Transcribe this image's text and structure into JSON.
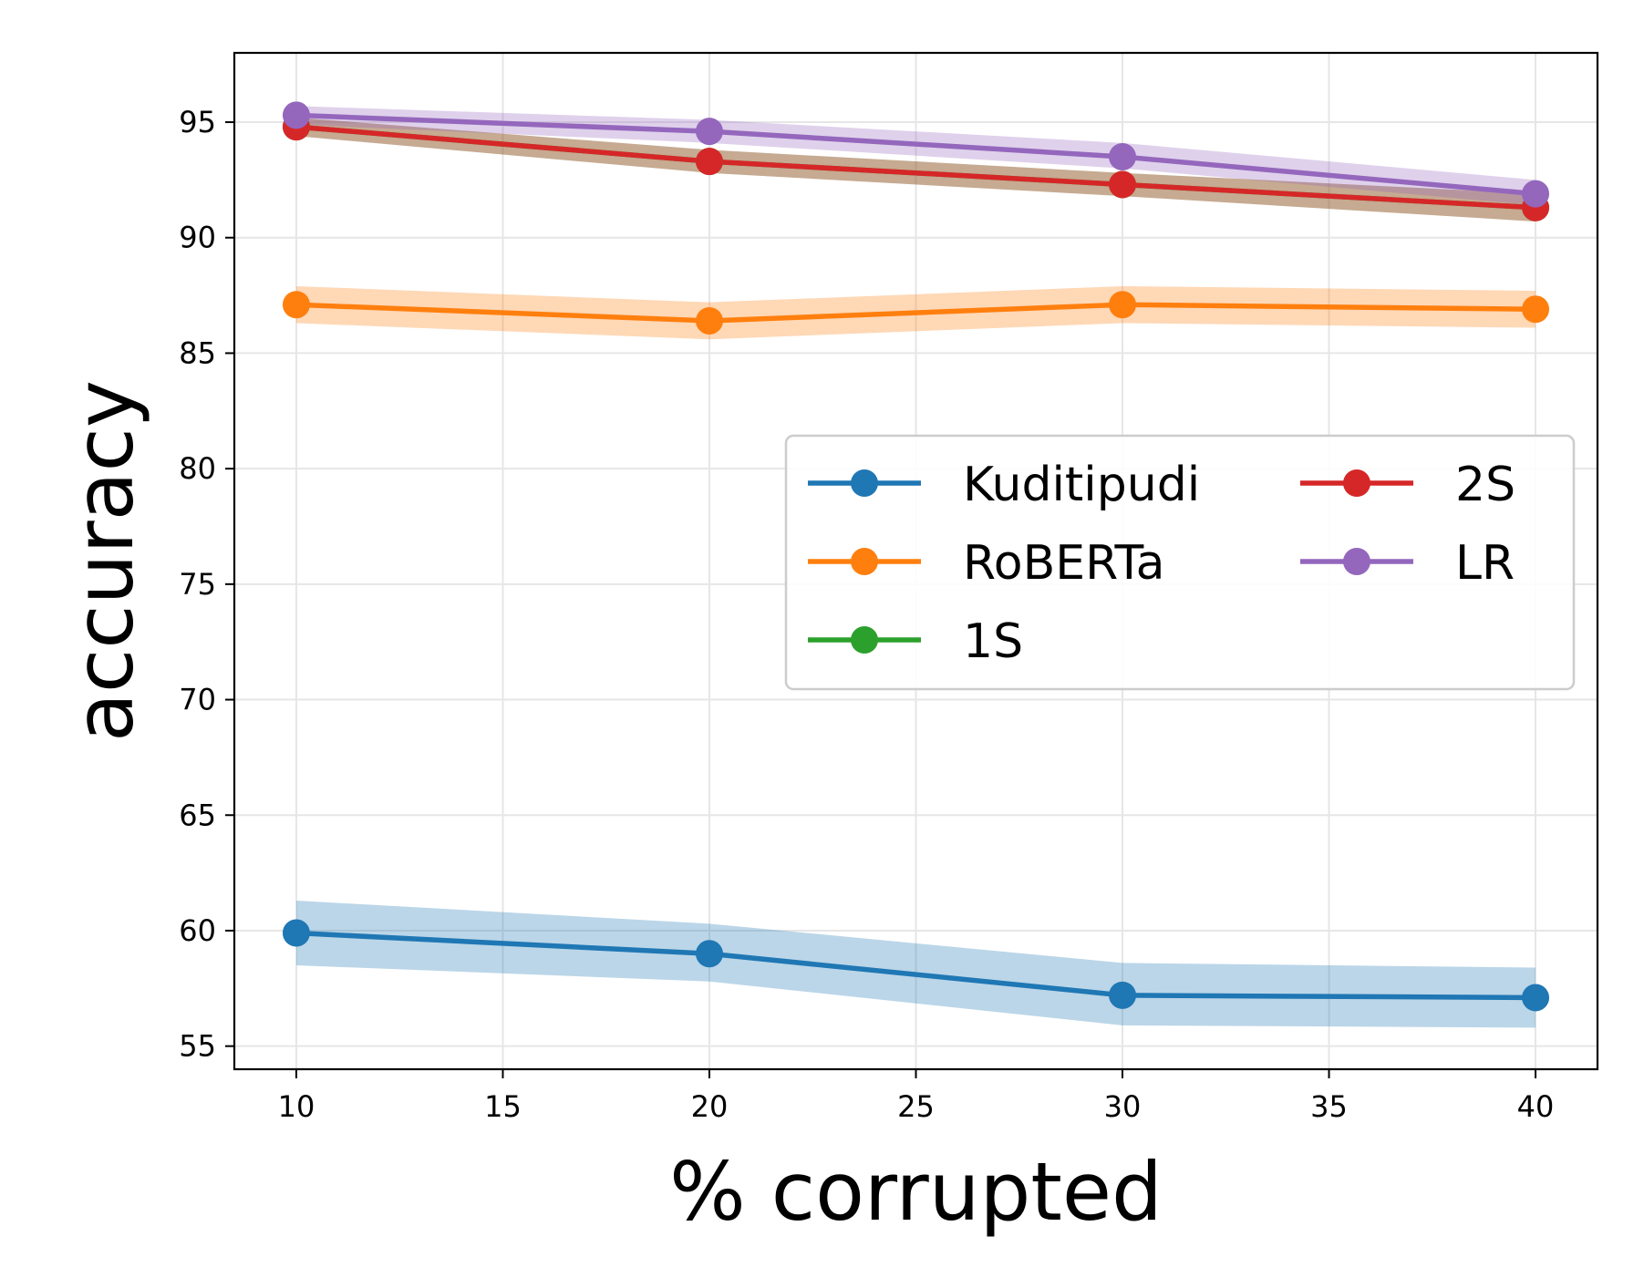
{
  "chart_data": {
    "type": "line",
    "title": "",
    "xlabel": "% corrupted",
    "ylabel": "accuracy",
    "x": [
      10,
      20,
      30,
      40
    ],
    "xlim": [
      8.5,
      41.5
    ],
    "ylim": [
      54.0,
      98.0
    ],
    "xticks": [
      10,
      15,
      20,
      25,
      30,
      35,
      40
    ],
    "yticks": [
      55,
      60,
      65,
      70,
      75,
      80,
      85,
      90,
      95
    ],
    "grid": true,
    "legend_position": "center-right",
    "legend_columns": 2,
    "series": [
      {
        "name": "Kuditipudi",
        "color": "#1f77b4",
        "values": [
          59.9,
          59.0,
          57.2,
          57.1
        ],
        "band_lower": [
          58.5,
          57.8,
          55.9,
          55.8
        ],
        "band_upper": [
          61.3,
          60.3,
          58.6,
          58.4
        ]
      },
      {
        "name": "RoBERTa",
        "color": "#ff7f0e",
        "values": [
          87.1,
          86.4,
          87.1,
          86.9
        ],
        "band_lower": [
          86.3,
          85.6,
          86.3,
          86.1
        ],
        "band_upper": [
          87.9,
          87.2,
          87.9,
          87.7
        ]
      },
      {
        "name": "1S",
        "color": "#2ca02c",
        "values": [
          94.8,
          93.3,
          92.3,
          91.3
        ],
        "band_lower": [
          94.4,
          92.8,
          91.8,
          90.7
        ],
        "band_upper": [
          95.2,
          93.8,
          92.8,
          91.9
        ]
      },
      {
        "name": "2S",
        "color": "#d62728",
        "values": [
          94.8,
          93.3,
          92.3,
          91.3
        ],
        "band_lower": [
          94.4,
          92.8,
          91.8,
          90.7
        ],
        "band_upper": [
          95.2,
          93.8,
          92.8,
          91.9
        ]
      },
      {
        "name": "LR",
        "color": "#9467bd",
        "values": [
          95.3,
          94.6,
          93.5,
          91.9
        ],
        "band_lower": [
          94.9,
          94.1,
          93.0,
          91.4
        ],
        "band_upper": [
          95.7,
          95.1,
          94.1,
          92.5
        ]
      }
    ]
  }
}
